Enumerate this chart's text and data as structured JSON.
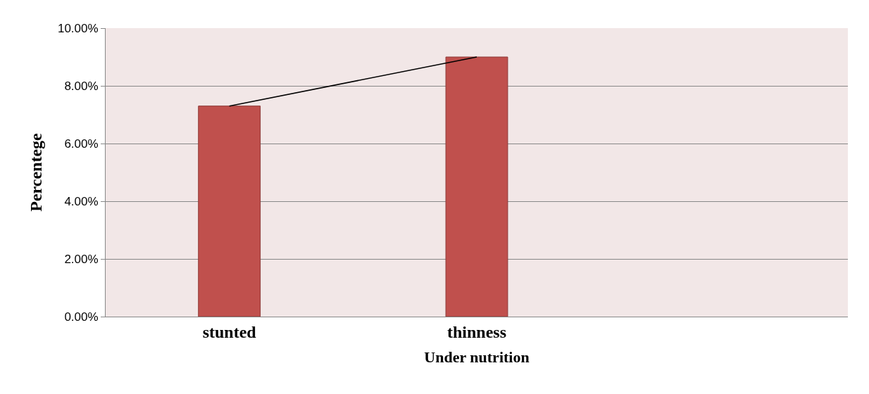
{
  "chart_data": {
    "type": "bar",
    "xlabel": "Under nutrition",
    "ylabel": "Percentege",
    "categories": [
      "stunted",
      "thinness",
      null
    ],
    "series": [
      {
        "color": "#c0504d",
        "values": [
          7.3,
          9.0,
          null
        ]
      },
      {
        "type": "line",
        "color": "#000000",
        "values": [
          7.3,
          9.0,
          null
        ]
      }
    ],
    "ylim": [
      0,
      10
    ],
    "yticks": [
      {
        "value": 0,
        "label": "0.00%"
      },
      {
        "value": 2,
        "label": "2.00%"
      },
      {
        "value": 4,
        "label": "4.00%"
      },
      {
        "value": 6,
        "label": "6.00%"
      },
      {
        "value": 8,
        "label": "8.00%"
      },
      {
        "value": 10,
        "label": "10.00%"
      }
    ],
    "grid": "y",
    "marker": "none"
  }
}
